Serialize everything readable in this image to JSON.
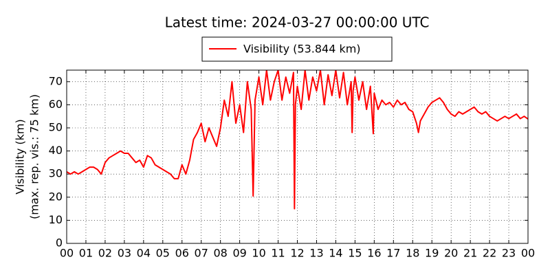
{
  "chart_data": {
    "type": "line",
    "title": "Latest time: 2024-03-27 00:00:00 UTC",
    "ylabel": [
      "Visibility (km)",
      "(max. rep. vis.: 75 km)"
    ],
    "x": [
      0,
      0.2,
      0.4,
      0.6,
      0.8,
      1,
      1.2,
      1.4,
      1.6,
      1.8,
      2,
      2.2,
      2.4,
      2.6,
      2.8,
      3,
      3.2,
      3.4,
      3.6,
      3.8,
      4,
      4.2,
      4.4,
      4.6,
      4.8,
      5,
      5.2,
      5.4,
      5.6,
      5.8,
      6,
      6.2,
      6.4,
      6.6,
      6.8,
      7,
      7.2,
      7.4,
      7.6,
      7.8,
      8,
      8.2,
      8.4,
      8.6,
      8.8,
      9,
      9.2,
      9.4,
      9.6,
      9.7,
      9.8,
      10,
      10.2,
      10.4,
      10.6,
      10.8,
      11,
      11.2,
      11.4,
      11.6,
      11.8,
      11.85,
      11.9,
      12,
      12.2,
      12.4,
      12.6,
      12.8,
      13,
      13.2,
      13.4,
      13.6,
      13.8,
      14,
      14.2,
      14.4,
      14.6,
      14.8,
      14.85,
      14.9,
      15,
      15.2,
      15.4,
      15.6,
      15.8,
      15.95,
      16,
      16.2,
      16.4,
      16.6,
      16.8,
      17,
      17.2,
      17.4,
      17.6,
      17.8,
      18,
      18.2,
      18.3,
      18.4,
      18.6,
      18.8,
      19,
      19.2,
      19.4,
      19.6,
      19.8,
      20,
      20.2,
      20.4,
      20.6,
      20.8,
      21,
      21.2,
      21.4,
      21.6,
      21.8,
      22,
      22.2,
      22.4,
      22.6,
      22.8,
      23,
      23.2,
      23.4,
      23.6,
      23.8,
      24
    ],
    "series": [
      {
        "name": "Visibility (53.844 km)",
        "color": "#ff0000",
        "values": [
          31,
          30,
          31,
          30,
          31,
          32,
          33,
          33,
          32,
          30,
          35,
          37,
          38,
          39,
          40,
          39,
          39,
          37,
          35,
          36,
          33,
          38,
          37,
          34,
          33,
          32,
          31,
          30,
          28,
          28,
          34,
          30,
          36,
          45,
          48,
          52,
          44,
          50,
          46,
          42,
          50,
          62,
          55,
          70,
          52,
          60,
          48,
          70,
          58,
          20.5,
          62,
          72,
          60,
          75,
          62,
          70,
          75,
          62,
          72,
          65,
          74,
          15,
          60,
          68,
          58,
          75,
          62,
          72,
          66,
          75,
          60,
          73,
          64,
          75,
          63,
          74,
          60,
          70,
          48,
          66,
          72,
          62,
          70,
          58,
          68,
          47.5,
          65,
          58,
          62,
          60,
          61,
          59,
          62,
          60,
          61,
          58,
          57,
          52,
          48,
          53,
          56,
          59,
          61,
          62,
          63,
          61,
          58,
          56,
          55,
          57,
          56,
          57,
          58,
          59,
          57,
          56,
          57,
          55,
          54,
          53,
          54,
          55,
          54,
          55,
          56,
          54,
          55,
          53.844
        ]
      }
    ],
    "xlim": [
      0,
      24
    ],
    "xticks": [
      {
        "value": 0,
        "label": "00"
      },
      {
        "value": 1,
        "label": "01"
      },
      {
        "value": 2,
        "label": "02"
      },
      {
        "value": 3,
        "label": "03"
      },
      {
        "value": 4,
        "label": "04"
      },
      {
        "value": 5,
        "label": "05"
      },
      {
        "value": 6,
        "label": "06"
      },
      {
        "value": 7,
        "label": "07"
      },
      {
        "value": 8,
        "label": "08"
      },
      {
        "value": 9,
        "label": "09"
      },
      {
        "value": 10,
        "label": "10"
      },
      {
        "value": 11,
        "label": "11"
      },
      {
        "value": 12,
        "label": "12"
      },
      {
        "value": 13,
        "label": "13"
      },
      {
        "value": 14,
        "label": "14"
      },
      {
        "value": 15,
        "label": "15"
      },
      {
        "value": 16,
        "label": "16"
      },
      {
        "value": 17,
        "label": "17"
      },
      {
        "value": 18,
        "label": "18"
      },
      {
        "value": 19,
        "label": "19"
      },
      {
        "value": 20,
        "label": "20"
      },
      {
        "value": 21,
        "label": "21"
      },
      {
        "value": 22,
        "label": "22"
      },
      {
        "value": 23,
        "label": "23"
      },
      {
        "value": 24,
        "label": "00"
      }
    ],
    "ylim": [
      0,
      75
    ],
    "yticks": [
      0,
      10,
      20,
      30,
      40,
      50,
      60,
      70
    ],
    "grid": true,
    "legend": "top"
  }
}
